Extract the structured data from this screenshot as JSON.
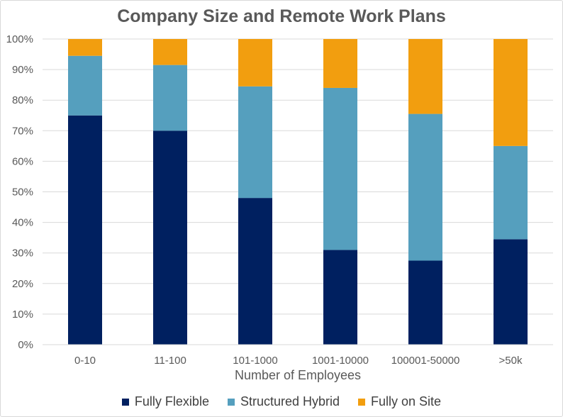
{
  "chart_data": {
    "type": "bar",
    "stacked": true,
    "title": "Company Size and Remote Work Plans",
    "xlabel": "Number of Employees",
    "ylabel": "",
    "ylim": [
      0,
      100
    ],
    "y_ticks": [
      "0%",
      "10%",
      "20%",
      "30%",
      "40%",
      "50%",
      "60%",
      "70%",
      "80%",
      "90%",
      "100%"
    ],
    "grid": true,
    "legend_position": "bottom",
    "categories": [
      "0-10",
      "11-100",
      "101-1000",
      "1001-10000",
      "100001-50000",
      ">50k"
    ],
    "series": [
      {
        "name": "Fully Flexible",
        "color": "#002060",
        "values": [
          75,
          70,
          48,
          31,
          27.5,
          34.5
        ]
      },
      {
        "name": "Structured Hybrid",
        "color": "#559fbe",
        "values": [
          19.5,
          21.5,
          36.5,
          53,
          48,
          30.5
        ]
      },
      {
        "name": "Fully on Site",
        "color": "#f29e0f",
        "values": [
          5.5,
          8.5,
          15.5,
          16,
          24.5,
          35
        ]
      }
    ]
  }
}
